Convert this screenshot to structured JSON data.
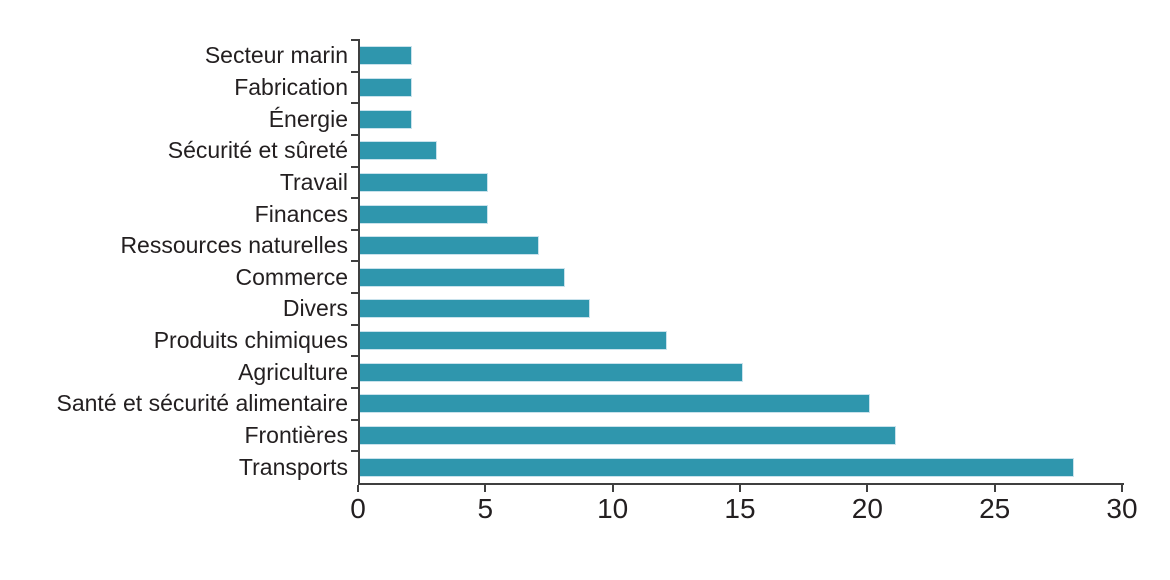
{
  "chart_data": {
    "type": "bar",
    "orientation": "horizontal",
    "title": "",
    "xlabel": "",
    "ylabel": "",
    "categories": [
      "Secteur marin",
      "Fabrication",
      "Énergie",
      "Sécurité et sûreté",
      "Travail",
      "Finances",
      "Ressources naturelles",
      "Commerce",
      "Divers",
      "Produits chimiques",
      "Agriculture",
      "Santé et sécurité alimentaire",
      "Frontières",
      "Transports"
    ],
    "values": [
      2,
      2,
      2,
      3,
      5,
      5,
      7,
      8,
      9,
      12,
      15,
      20,
      21,
      28
    ],
    "xlim": [
      0,
      30
    ],
    "xticks": [
      0,
      5,
      10,
      15,
      20,
      25,
      30
    ],
    "grid": false,
    "legend": "none",
    "colors": {
      "bar_fill": "#2F96AD",
      "bar_border": "#C9E2EC",
      "axis": "#3F3F3F",
      "text": "#231F20"
    }
  }
}
